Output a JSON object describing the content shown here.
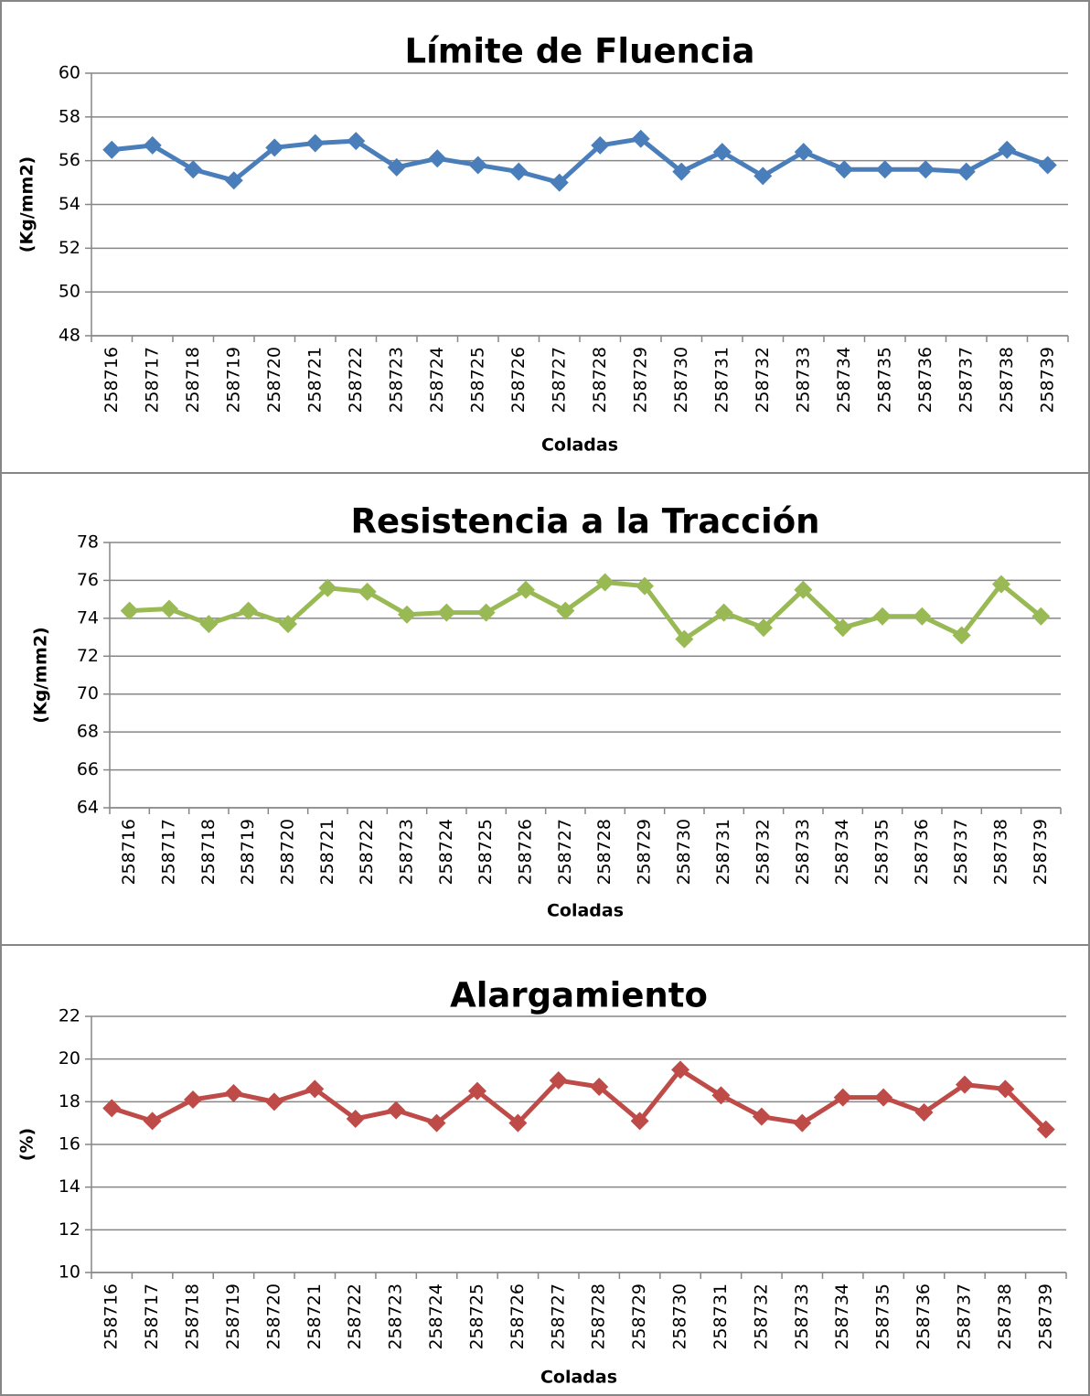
{
  "chart_data": [
    {
      "type": "line",
      "title": "Límite de Fluencia",
      "x_label": "Coladas",
      "y_label": "(Kg/mm2)",
      "categories": [
        "258716",
        "258717",
        "258718",
        "258719",
        "258720",
        "258721",
        "258722",
        "258723",
        "258724",
        "258725",
        "258726",
        "258727",
        "258728",
        "258729",
        "258730",
        "258731",
        "258732",
        "258733",
        "258734",
        "258735",
        "258736",
        "258737",
        "258738",
        "258739"
      ],
      "values": [
        56.5,
        56.7,
        55.6,
        55.1,
        56.6,
        56.8,
        56.9,
        55.7,
        56.1,
        55.8,
        55.5,
        55.0,
        56.7,
        57.0,
        55.5,
        56.4,
        55.3,
        56.4,
        55.6,
        55.6,
        55.6,
        55.5,
        56.5,
        55.8
      ],
      "color": "#4a7ebb",
      "ylim": [
        48,
        60
      ],
      "yticks": [
        48,
        50,
        52,
        54,
        56,
        58,
        60
      ],
      "grid": true
    },
    {
      "type": "line",
      "title": "Resistencia a la Tracción",
      "x_label": "Coladas",
      "y_label": "(Kg/mm2)",
      "categories": [
        "258716",
        "258717",
        "258718",
        "258719",
        "258720",
        "258721",
        "258722",
        "258723",
        "258724",
        "258725",
        "258726",
        "258727",
        "258728",
        "258729",
        "258730",
        "258731",
        "258732",
        "258733",
        "258734",
        "258735",
        "258736",
        "258737",
        "258738",
        "258739"
      ],
      "values": [
        74.4,
        74.5,
        73.7,
        74.4,
        73.7,
        75.6,
        75.4,
        74.2,
        74.3,
        74.3,
        75.5,
        74.4,
        75.9,
        75.7,
        72.9,
        74.3,
        73.5,
        75.5,
        73.5,
        74.1,
        74.1,
        73.1,
        75.8,
        74.1
      ],
      "color": "#98b954",
      "ylim": [
        64,
        78
      ],
      "yticks": [
        64,
        66,
        68,
        70,
        72,
        74,
        76,
        78
      ],
      "grid": true
    },
    {
      "type": "line",
      "title": "Alargamiento",
      "x_label": "Coladas",
      "y_label": "(%)",
      "categories": [
        "258716",
        "258717",
        "258718",
        "258719",
        "258720",
        "258721",
        "258722",
        "258723",
        "258724",
        "258725",
        "258726",
        "258727",
        "258728",
        "258729",
        "258730",
        "258731",
        "258732",
        "258733",
        "258734",
        "258735",
        "258736",
        "258737",
        "258738",
        "258739"
      ],
      "values": [
        17.7,
        17.1,
        18.1,
        18.4,
        18.0,
        18.6,
        17.2,
        17.6,
        17.0,
        18.5,
        17.0,
        19.0,
        18.7,
        17.1,
        19.5,
        18.3,
        17.3,
        17.0,
        18.2,
        18.2,
        17.5,
        18.8,
        18.6,
        16.7
      ],
      "color": "#be4b48",
      "ylim": [
        10,
        22
      ],
      "yticks": [
        10,
        12,
        14,
        16,
        18,
        20,
        22
      ],
      "grid": true
    }
  ]
}
